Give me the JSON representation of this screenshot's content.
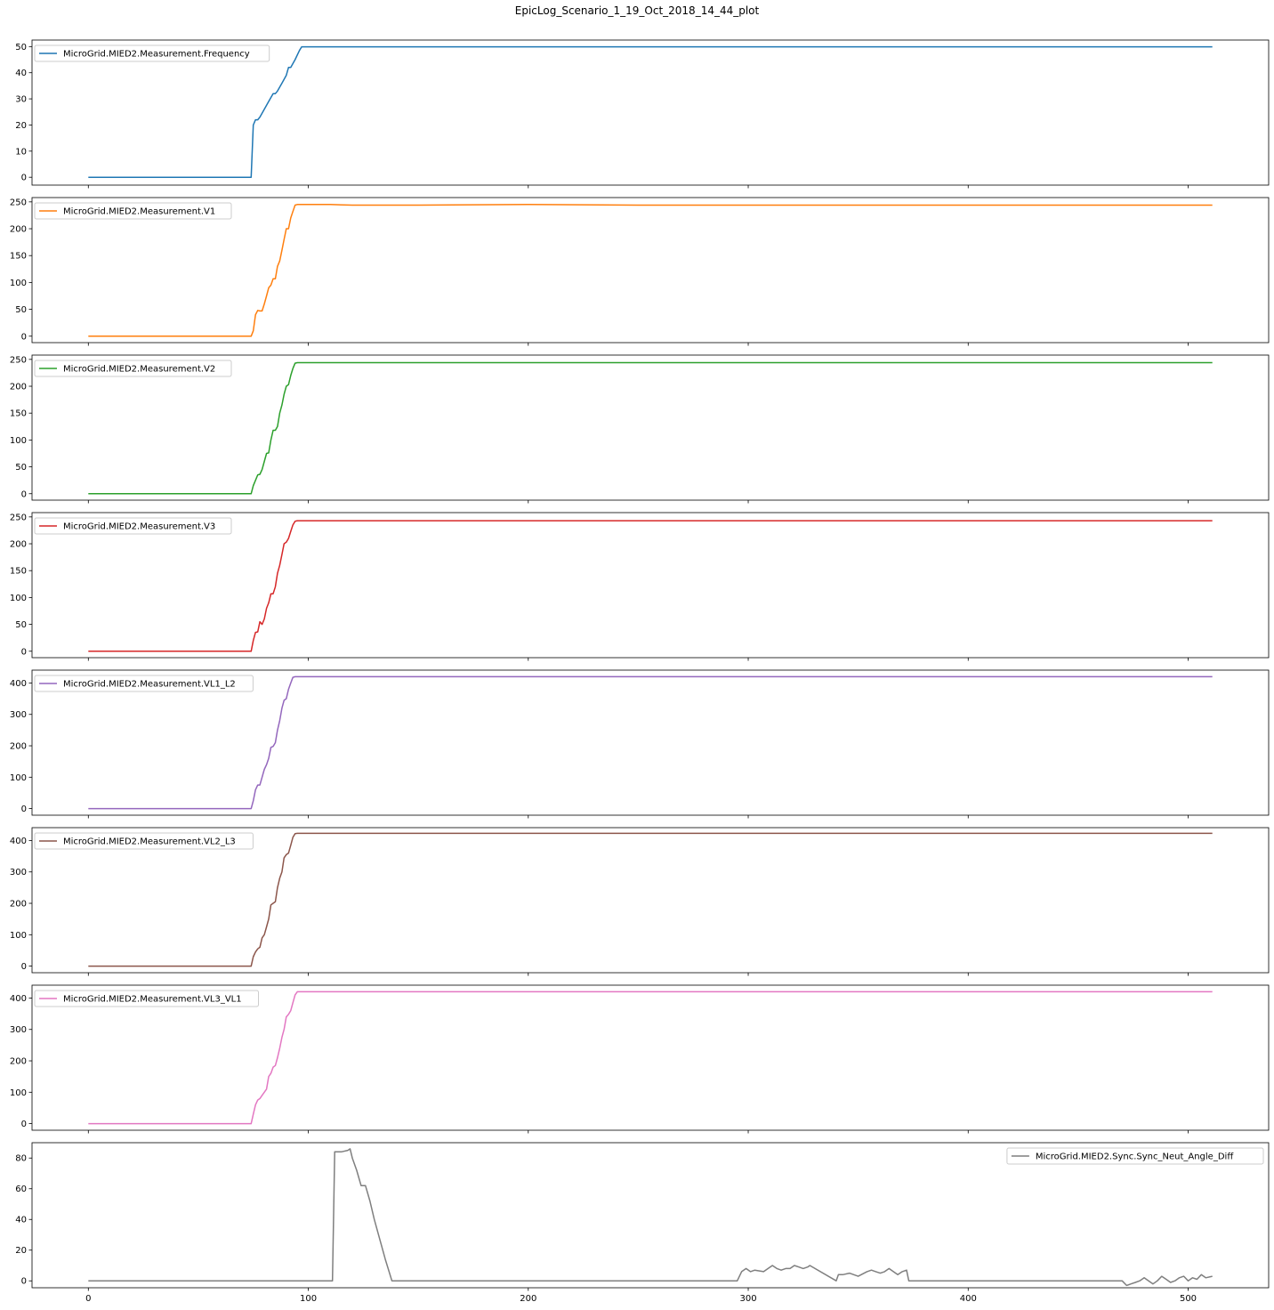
{
  "title": "EpicLog_Scenario_1_19_Oct_2018_14_44_plot",
  "chart_data": [
    {
      "type": "line",
      "series": [
        {
          "name": "MicroGrid.MIED2.Measurement.Frequency",
          "color": "#1f77b4",
          "x": [
            0,
            74,
            75,
            76,
            77,
            78,
            80,
            82,
            84,
            85,
            86,
            88,
            90,
            91,
            92,
            94,
            96,
            97,
            100,
            200,
            300,
            400,
            511
          ],
          "y": [
            0,
            0,
            20,
            22,
            22,
            23,
            26,
            29,
            32,
            32,
            33,
            36,
            39,
            42,
            42,
            45,
            48.5,
            49.9,
            49.9,
            49.9,
            49.9,
            49.9,
            49.9
          ]
        }
      ],
      "ylim": [
        -3,
        52.5
      ],
      "yticks": [
        0,
        10,
        20,
        30,
        40,
        50
      ],
      "legend": "upper left"
    },
    {
      "type": "line",
      "series": [
        {
          "name": "MicroGrid.MIED2.Measurement.V1",
          "color": "#ff7f0e",
          "x": [
            0,
            74,
            75,
            76,
            77,
            78,
            79,
            80,
            81,
            82,
            83,
            84,
            85,
            86,
            87,
            88,
            89,
            90,
            91,
            92,
            93,
            94,
            95,
            96,
            97,
            110,
            120,
            130,
            150,
            200,
            250,
            300,
            350,
            400,
            450,
            511
          ],
          "y": [
            0,
            0,
            10,
            40,
            48,
            47,
            47,
            60,
            75,
            90,
            95,
            107,
            107,
            130,
            140,
            160,
            180,
            200,
            200,
            220,
            232,
            244,
            245,
            245,
            245,
            245,
            244,
            244,
            244,
            245,
            244,
            244,
            244,
            244,
            244,
            244
          ]
        }
      ],
      "ylim": [
        -12,
        258
      ],
      "yticks": [
        0,
        50,
        100,
        150,
        200,
        250
      ],
      "legend": "upper left"
    },
    {
      "type": "line",
      "series": [
        {
          "name": "MicroGrid.MIED2.Measurement.V2",
          "color": "#2ca02c",
          "x": [
            0,
            74,
            75,
            76,
            77,
            78,
            79,
            80,
            81,
            82,
            83,
            84,
            85,
            86,
            87,
            88,
            89,
            90,
            91,
            92,
            93,
            94,
            95,
            96,
            97,
            110,
            150,
            200,
            250,
            300,
            350,
            400,
            450,
            511
          ],
          "y": [
            0,
            0,
            15,
            25,
            35,
            36,
            45,
            60,
            75,
            76,
            100,
            118,
            118,
            125,
            150,
            165,
            185,
            200,
            203,
            220,
            233,
            243,
            244,
            244,
            244,
            244,
            244,
            244,
            244,
            244,
            244,
            244,
            244,
            244
          ]
        }
      ],
      "ylim": [
        -12,
        258
      ],
      "yticks": [
        0,
        50,
        100,
        150,
        200,
        250
      ],
      "legend": "upper left"
    },
    {
      "type": "line",
      "series": [
        {
          "name": "MicroGrid.MIED2.Measurement.V3",
          "color": "#d62728",
          "x": [
            0,
            74,
            75,
            76,
            77,
            78,
            79,
            80,
            81,
            82,
            83,
            84,
            85,
            86,
            87,
            88,
            89,
            90,
            91,
            92,
            93,
            94,
            95,
            96,
            97,
            150,
            250,
            350,
            450,
            511
          ],
          "y": [
            0,
            0,
            20,
            35,
            36,
            55,
            50,
            60,
            80,
            90,
            107,
            107,
            120,
            145,
            160,
            180,
            200,
            203,
            210,
            223,
            235,
            242,
            243,
            243,
            243,
            243,
            243,
            243,
            243,
            243
          ]
        }
      ],
      "ylim": [
        -12,
        258
      ],
      "yticks": [
        0,
        50,
        100,
        150,
        200,
        250
      ],
      "legend": "upper left"
    },
    {
      "type": "line",
      "series": [
        {
          "name": "MicroGrid.MIED2.Measurement.VL1_L2",
          "color": "#9467bd",
          "x": [
            0,
            74,
            75,
            76,
            77,
            78,
            79,
            80,
            81,
            82,
            83,
            84,
            85,
            86,
            87,
            88,
            89,
            90,
            91,
            92,
            93,
            94,
            95,
            96,
            97,
            110,
            150,
            200,
            250,
            300,
            350,
            400,
            450,
            511
          ],
          "y": [
            0,
            0,
            25,
            60,
            75,
            75,
            100,
            125,
            140,
            160,
            195,
            198,
            210,
            250,
            280,
            320,
            345,
            350,
            380,
            400,
            418,
            420,
            420,
            420,
            420,
            420,
            420,
            420,
            420,
            420,
            420,
            420,
            420,
            420
          ]
        }
      ],
      "ylim": [
        -21,
        441
      ],
      "yticks": [
        0,
        100,
        200,
        300,
        400
      ],
      "legend": "upper left"
    },
    {
      "type": "line",
      "series": [
        {
          "name": "MicroGrid.MIED2.Measurement.VL2_L3",
          "color": "#8c564b",
          "x": [
            0,
            74,
            75,
            76,
            77,
            78,
            79,
            80,
            81,
            82,
            83,
            84,
            85,
            86,
            87,
            88,
            89,
            90,
            91,
            92,
            93,
            94,
            95,
            96,
            97,
            150,
            250,
            350,
            450,
            511
          ],
          "y": [
            0,
            0,
            30,
            45,
            55,
            60,
            90,
            100,
            125,
            150,
            195,
            200,
            205,
            250,
            280,
            300,
            345,
            355,
            360,
            385,
            410,
            422,
            423,
            423,
            423,
            423,
            423,
            423,
            423,
            423
          ]
        }
      ],
      "ylim": [
        -21,
        441
      ],
      "yticks": [
        0,
        100,
        200,
        300,
        400
      ],
      "legend": "upper left"
    },
    {
      "type": "line",
      "series": [
        {
          "name": "MicroGrid.MIED2.Measurement.VL3_VL1",
          "color": "#e377c2",
          "x": [
            0,
            74,
            75,
            76,
            77,
            78,
            79,
            80,
            81,
            82,
            83,
            84,
            85,
            86,
            87,
            88,
            89,
            90,
            91,
            92,
            93,
            94,
            95,
            96,
            97,
            150,
            250,
            350,
            450,
            511
          ],
          "y": [
            0,
            0,
            30,
            60,
            75,
            80,
            90,
            100,
            110,
            150,
            160,
            180,
            185,
            210,
            240,
            275,
            300,
            340,
            348,
            360,
            385,
            410,
            420,
            420,
            420,
            420,
            420,
            420,
            420,
            420
          ]
        }
      ],
      "ylim": [
        -21,
        441
      ],
      "yticks": [
        0,
        100,
        200,
        300,
        400
      ],
      "legend": "upper left"
    },
    {
      "type": "line",
      "series": [
        {
          "name": "MicroGrid.MIED2.Sync.Sync_Neut_Angle_Diff",
          "color": "#7f7f7f",
          "x": [
            0,
            111,
            112,
            115,
            118,
            119,
            120,
            122,
            124,
            126,
            128,
            130,
            135,
            138,
            139,
            200,
            295,
            297,
            299,
            301,
            303,
            307,
            309,
            311,
            313,
            315,
            317,
            319,
            321,
            323,
            325,
            327,
            328,
            340,
            341,
            343,
            346,
            350,
            354,
            356,
            358,
            360,
            362,
            364,
            366,
            368,
            370,
            372,
            373,
            470,
            472,
            474,
            476,
            478,
            480,
            482,
            484,
            486,
            488,
            490,
            492,
            494,
            496,
            498,
            500,
            502,
            504,
            506,
            508,
            511
          ],
          "y": [
            0,
            0,
            84,
            84,
            85,
            86,
            80,
            72,
            62,
            62,
            52,
            40,
            14,
            0,
            0,
            0,
            0,
            6,
            8,
            6,
            7,
            6,
            8,
            10,
            8,
            7,
            8,
            8,
            10,
            9,
            8,
            9,
            10,
            0,
            4,
            4,
            5,
            3,
            6,
            7,
            6,
            5,
            6,
            8,
            6,
            4,
            6,
            7,
            0,
            0,
            -3,
            -2,
            -1,
            0,
            2,
            0,
            -2,
            0,
            3,
            1,
            -1,
            0,
            2,
            3,
            0,
            2,
            1,
            4,
            2,
            3
          ]
        }
      ],
      "ylim": [
        -4.5,
        90
      ],
      "yticks": [
        0,
        20,
        40,
        60,
        80
      ],
      "legend": "upper right"
    }
  ],
  "x_axis": {
    "xlim": [
      -25.6,
      536.6
    ],
    "xticks": [
      0,
      100,
      200,
      300,
      400,
      500
    ]
  }
}
